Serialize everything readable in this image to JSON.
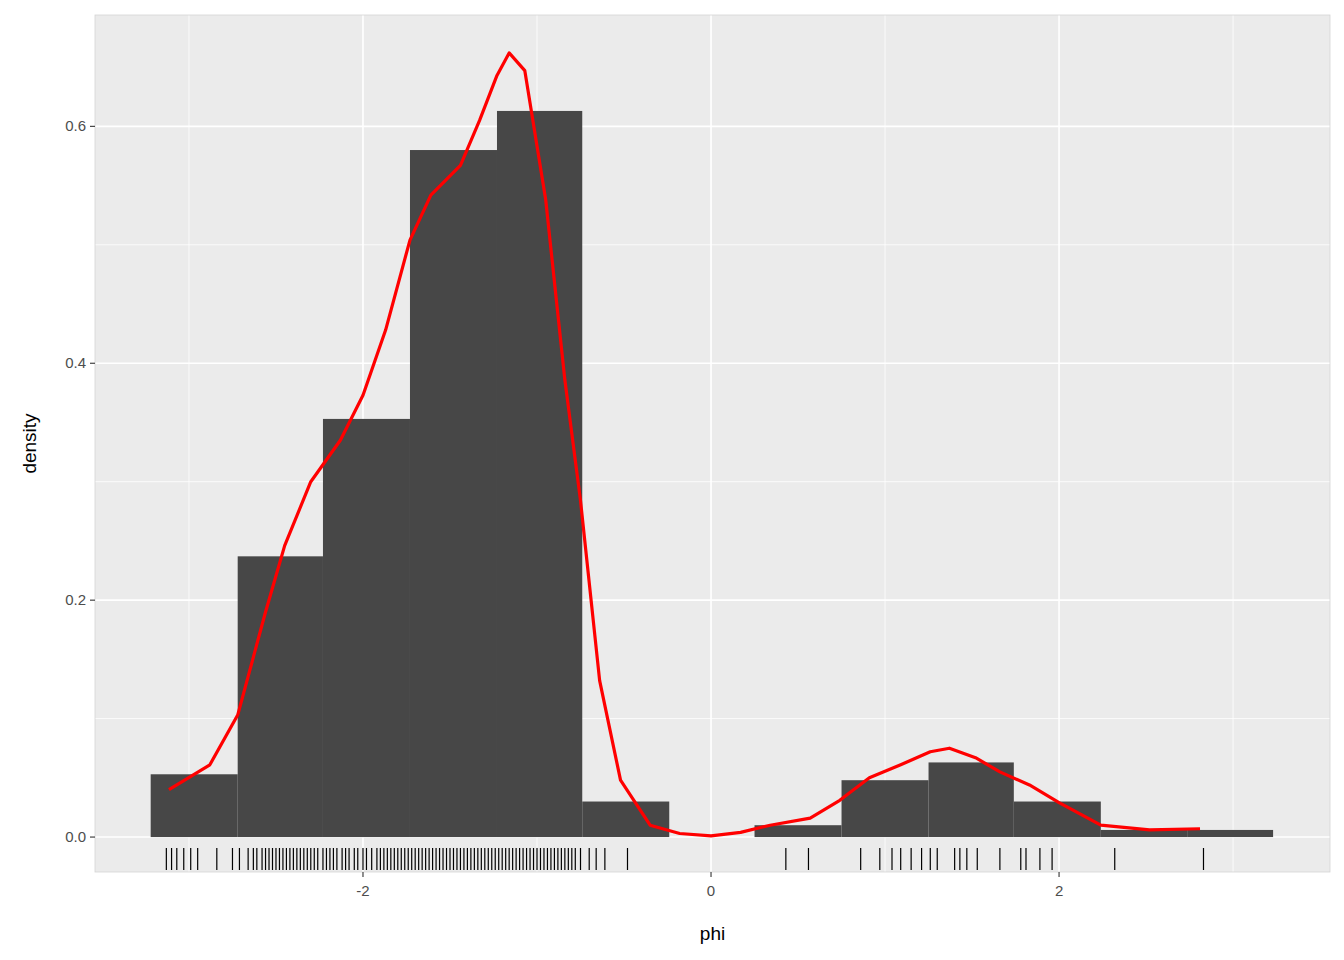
{
  "chart_data": {
    "type": "histogram",
    "x_label": "phi",
    "y_label": "density",
    "bins": [
      -3.22,
      -2.72,
      -2.23,
      -1.73,
      -1.23,
      -0.74,
      -0.24,
      0.25,
      0.75,
      1.25,
      1.74,
      2.24,
      2.74,
      3.23
    ],
    "values": [
      0.053,
      0.237,
      0.353,
      0.58,
      0.613,
      0.03,
      0,
      0.01,
      0.048,
      0.063,
      0.03,
      0.006,
      0.006
    ],
    "color": "#474747",
    "density": {
      "color": "#ff0000",
      "x": [
        -3.115,
        -2.88,
        -2.72,
        -2.56,
        -2.45,
        -2.3,
        -2.13,
        -2.0,
        -1.87,
        -1.73,
        -1.61,
        -1.44,
        -1.33,
        -1.23,
        -1.16,
        -1.07,
        -0.95,
        -0.84,
        -0.75,
        -0.64,
        -0.52,
        -0.35,
        -0.18,
        0,
        0.17,
        0.34,
        0.57,
        0.74,
        0.91,
        1.09,
        1.26,
        1.37,
        1.52,
        1.66,
        1.83,
        2.0,
        2.24,
        2.52,
        2.81
      ],
      "y": [
        0.04,
        0.061,
        0.103,
        0.19,
        0.246,
        0.3,
        0.335,
        0.373,
        0.428,
        0.504,
        0.542,
        0.567,
        0.605,
        0.643,
        0.662,
        0.647,
        0.538,
        0.386,
        0.284,
        0.132,
        0.048,
        0.01,
        0.003,
        0.001,
        0.004,
        0.01,
        0.016,
        0.031,
        0.05,
        0.061,
        0.072,
        0.075,
        0.067,
        0.055,
        0.044,
        0.029,
        0.01,
        0.006,
        0.007
      ]
    },
    "rug": [
      -3.13,
      -3.1,
      -3.07,
      -3.03,
      -2.99,
      -2.95,
      -2.84,
      -2.75,
      -2.71,
      -2.66,
      -2.63,
      -2.61,
      -2.58,
      -2.56,
      -2.54,
      -2.52,
      -2.5,
      -2.48,
      -2.46,
      -2.44,
      -2.42,
      -2.4,
      -2.38,
      -2.36,
      -2.34,
      -2.32,
      -2.3,
      -2.28,
      -2.26,
      -2.23,
      -2.21,
      -2.19,
      -2.17,
      -2.15,
      -2.12,
      -2.1,
      -2.08,
      -2.05,
      -2.03,
      -2.0,
      -1.98,
      -1.95,
      -1.92,
      -1.9,
      -1.88,
      -1.86,
      -1.84,
      -1.82,
      -1.8,
      -1.78,
      -1.76,
      -1.74,
      -1.72,
      -1.7,
      -1.68,
      -1.66,
      -1.64,
      -1.62,
      -1.6,
      -1.58,
      -1.56,
      -1.54,
      -1.52,
      -1.5,
      -1.48,
      -1.46,
      -1.44,
      -1.42,
      -1.4,
      -1.38,
      -1.36,
      -1.34,
      -1.32,
      -1.3,
      -1.28,
      -1.26,
      -1.24,
      -1.22,
      -1.2,
      -1.18,
      -1.16,
      -1.14,
      -1.12,
      -1.1,
      -1.08,
      -1.06,
      -1.04,
      -1.02,
      -1.0,
      -0.98,
      -0.96,
      -0.94,
      -0.92,
      -0.9,
      -0.88,
      -0.86,
      -0.84,
      -0.82,
      -0.8,
      -0.78,
      -0.75,
      -0.7,
      -0.66,
      -0.61,
      -0.48,
      0.43,
      0.56,
      0.86,
      0.97,
      1.04,
      1.09,
      1.15,
      1.21,
      1.26,
      1.3,
      1.4,
      1.43,
      1.47,
      1.53,
      1.66,
      1.78,
      1.81,
      1.89,
      1.96,
      2.32,
      2.83
    ],
    "xlim": [
      -3.54,
      3.557
    ],
    "ylim": [
      -0.0295,
      0.694
    ],
    "xticks": [
      -2,
      0,
      2
    ],
    "yticks": [
      {
        "value": 0,
        "label": "0.0"
      },
      0.2,
      0.4,
      0.6
    ],
    "grid": true
  }
}
